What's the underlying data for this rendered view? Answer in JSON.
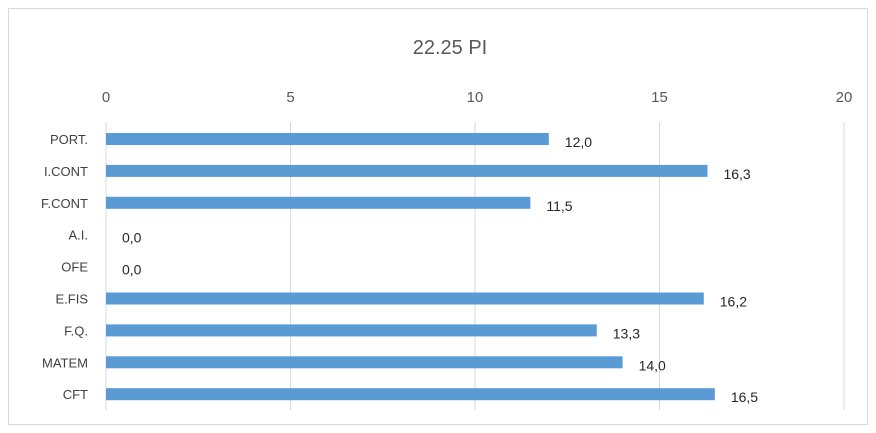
{
  "chart_data": {
    "type": "bar",
    "orientation": "horizontal",
    "title": "22.25 PI",
    "xlabel": "",
    "ylabel": "",
    "xlim": [
      0,
      20
    ],
    "x_ticks": [
      "0",
      "5",
      "10",
      "15",
      "20"
    ],
    "x_axis_position": "top",
    "grid": true,
    "legend": "none",
    "categories": [
      "PORT.",
      "I.CONT",
      "F.CONT",
      "A.I.",
      "OFE",
      "E.FIS",
      "F.Q.",
      "MATEM",
      "CFT"
    ],
    "values": [
      12.0,
      16.3,
      11.5,
      0.0,
      0.0,
      16.2,
      13.3,
      14.0,
      16.5
    ],
    "value_labels": [
      "12,0",
      "16,3",
      "11,5",
      "0,0",
      "0,0",
      "16,2",
      "13,3",
      "14,0",
      "16,5"
    ],
    "bar_color": "#5b9bd5"
  }
}
